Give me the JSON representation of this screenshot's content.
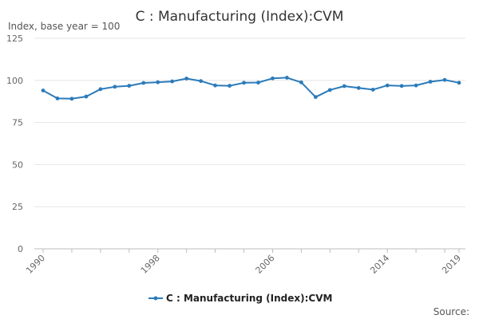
{
  "chart_data": {
    "type": "line",
    "title": "C : Manufacturing (Index):CVM",
    "ylabel": "Index, base year = 100",
    "xlabel": "",
    "ylim": [
      0,
      125
    ],
    "yticks": [
      0,
      25,
      50,
      75,
      100,
      125
    ],
    "xlim": [
      1990,
      2019
    ],
    "xtick_labels": [
      1990,
      1998,
      2006,
      2014,
      2019
    ],
    "grid": true,
    "legend_position": "bottom-center",
    "series": [
      {
        "name": "C : Manufacturing (Index):CVM",
        "color": "#2b7bba",
        "x": [
          1990,
          1991,
          1992,
          1993,
          1994,
          1995,
          1996,
          1997,
          1998,
          1999,
          2000,
          2001,
          2002,
          2003,
          2004,
          2005,
          2006,
          2007,
          2008,
          2009,
          2010,
          2011,
          2012,
          2013,
          2014,
          2015,
          2016,
          2017,
          2018,
          2019
        ],
        "values": [
          94.0,
          89.3,
          89.1,
          90.4,
          94.8,
          96.2,
          96.8,
          98.5,
          98.9,
          99.4,
          101.1,
          99.6,
          97.0,
          96.8,
          98.6,
          98.7,
          101.2,
          101.6,
          98.8,
          90.1,
          94.3,
          96.6,
          95.5,
          94.5,
          97.0,
          96.7,
          97.0,
          99.2,
          100.3,
          98.6
        ]
      }
    ],
    "source_label": "Source:"
  }
}
